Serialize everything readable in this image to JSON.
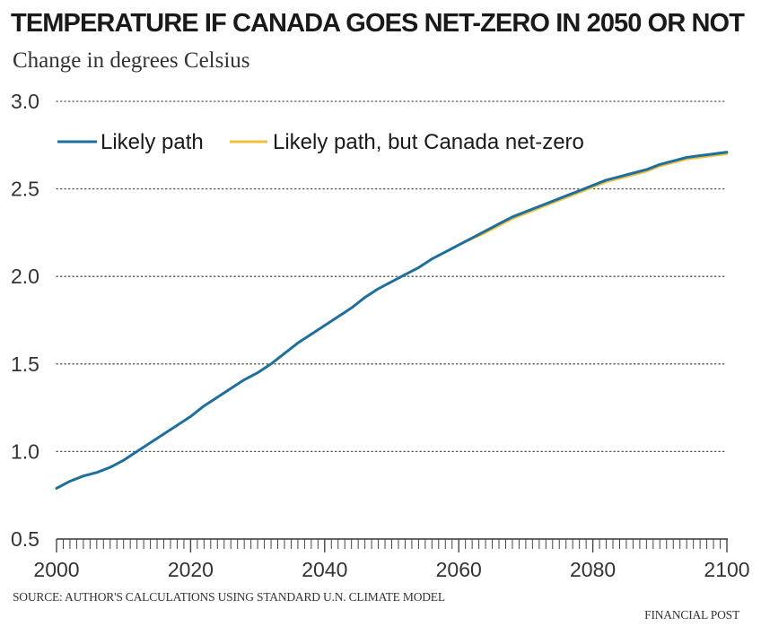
{
  "chart_data": {
    "type": "line",
    "title": "TEMPERATURE IF CANADA GOES NET-ZERO IN 2050 OR NOT",
    "subtitle": "Change in degrees Celsius",
    "xlabel": "",
    "ylabel": "",
    "xlim": [
      2000,
      2100
    ],
    "ylim": [
      0.5,
      3.0
    ],
    "xticks": [
      2000,
      2020,
      2040,
      2060,
      2080,
      2100
    ],
    "yticks": [
      0.5,
      1.0,
      1.5,
      2.0,
      2.5,
      3.0
    ],
    "ytick_labels": [
      "0.5",
      "1.0",
      "1.5",
      "2.0",
      "2.5",
      "3.0"
    ],
    "grid": "horizontal dotted",
    "legend": "top-left",
    "x": [
      2000,
      2002,
      2004,
      2006,
      2008,
      2010,
      2012,
      2014,
      2016,
      2018,
      2020,
      2022,
      2024,
      2026,
      2028,
      2030,
      2032,
      2034,
      2036,
      2038,
      2040,
      2042,
      2044,
      2046,
      2048,
      2050,
      2052,
      2054,
      2056,
      2058,
      2060,
      2062,
      2064,
      2066,
      2068,
      2070,
      2072,
      2074,
      2076,
      2078,
      2080,
      2082,
      2084,
      2086,
      2088,
      2090,
      2092,
      2094,
      2096,
      2098,
      2100
    ],
    "series": [
      {
        "name": "Likely path",
        "color": "#1d6f9e",
        "values": [
          0.79,
          0.83,
          0.86,
          0.88,
          0.91,
          0.95,
          1.0,
          1.05,
          1.1,
          1.15,
          1.2,
          1.26,
          1.31,
          1.36,
          1.41,
          1.45,
          1.5,
          1.56,
          1.62,
          1.67,
          1.72,
          1.77,
          1.82,
          1.88,
          1.93,
          1.97,
          2.01,
          2.05,
          2.1,
          2.14,
          2.18,
          2.22,
          2.26,
          2.3,
          2.34,
          2.37,
          2.4,
          2.43,
          2.46,
          2.49,
          2.52,
          2.55,
          2.57,
          2.59,
          2.61,
          2.64,
          2.66,
          2.68,
          2.69,
          2.7,
          2.71
        ]
      },
      {
        "name": "Likely path, but Canada net-zero",
        "color": "#f0bf3a",
        "values": [
          0.79,
          0.83,
          0.86,
          0.88,
          0.91,
          0.95,
          1.0,
          1.05,
          1.1,
          1.15,
          1.2,
          1.26,
          1.31,
          1.36,
          1.41,
          1.45,
          1.5,
          1.56,
          1.62,
          1.67,
          1.72,
          1.77,
          1.82,
          1.88,
          1.93,
          1.97,
          2.01,
          2.05,
          2.1,
          2.14,
          2.18,
          2.215,
          2.25,
          2.29,
          2.33,
          2.36,
          2.39,
          2.42,
          2.45,
          2.48,
          2.51,
          2.54,
          2.56,
          2.58,
          2.6,
          2.63,
          2.65,
          2.67,
          2.68,
          2.69,
          2.7
        ]
      }
    ],
    "source": "SOURCE: AUTHOR'S CALCULATIONS USING STANDARD U.N. CLIMATE MODEL",
    "credit": "FINANCIAL POST"
  }
}
